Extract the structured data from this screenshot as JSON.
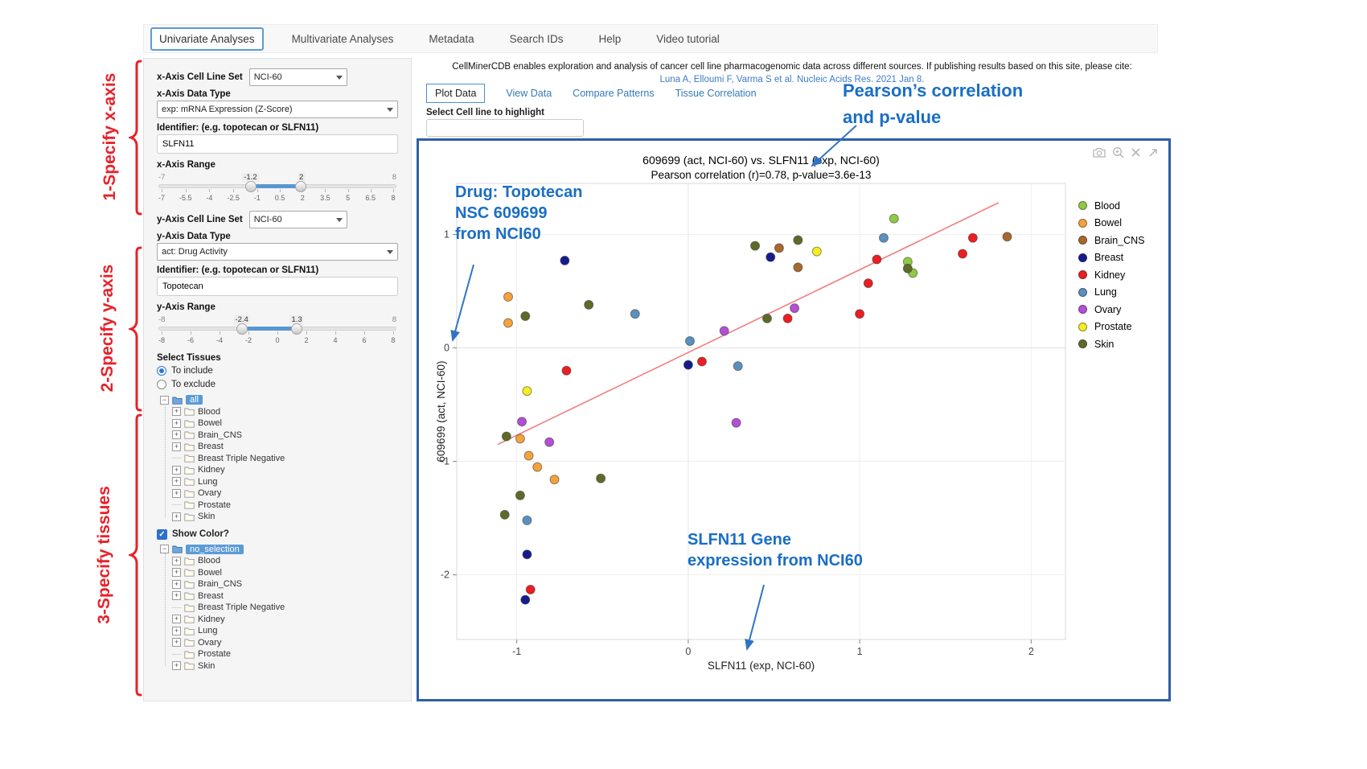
{
  "nav": {
    "tabs": [
      {
        "label": "Univariate Analyses",
        "active": true
      },
      {
        "label": "Multivariate Analyses",
        "active": false
      },
      {
        "label": "Metadata",
        "active": false
      },
      {
        "label": "Search IDs",
        "active": false
      },
      {
        "label": "Help",
        "active": false
      },
      {
        "label": "Video tutorial",
        "active": false
      }
    ]
  },
  "steps": {
    "step1": "1-Specify x-axis",
    "step2": "2-Specify y-axis",
    "step3": "3-Specify tissues"
  },
  "sidebar": {
    "x_axis": {
      "cell_line_label": "x-Axis Cell Line Set",
      "cell_line_value": "NCI-60",
      "data_type_label": "x-Axis Data Type",
      "data_type_value": "exp: mRNA Expression (Z-Score)",
      "identifier_label": "Identifier: (e.g. topotecan or SLFN11)",
      "identifier_value": "SLFN11",
      "range_label": "x-Axis Range",
      "range": {
        "min": -7,
        "max": 8,
        "from": -1.2,
        "to": 2,
        "min_label": "-7",
        "max_label": "8",
        "from_label": "-1.2",
        "to_label": "2",
        "ticks": [
          "-7",
          "-5.5",
          "-4",
          "-2.5",
          "-1",
          "0.5",
          "2",
          "3.5",
          "5",
          "6.5",
          "8"
        ]
      }
    },
    "y_axis": {
      "cell_line_label": "y-Axis Cell Line Set",
      "cell_line_value": "NCI-60",
      "data_type_label": "y-Axis Data Type",
      "data_type_value": "act: Drug Activity",
      "identifier_label": "Identifier: (e.g. topotecan or SLFN11)",
      "identifier_value": "Topotecan",
      "range_label": "y-Axis Range",
      "range": {
        "min": -8,
        "max": 8,
        "from": -2.4,
        "to": 1.3,
        "min_label": "-8",
        "max_label": "8",
        "from_label": "-2.4",
        "to_label": "1.3",
        "ticks": [
          "-8",
          "-6",
          "-4",
          "-2",
          "0",
          "2",
          "4",
          "6",
          "8"
        ]
      }
    },
    "tissues": {
      "label": "Select Tissues",
      "radio_include": "To include",
      "radio_exclude": "To exclude",
      "include_selected": true,
      "tree_root": "all",
      "exclude_tree_root": "no_selection",
      "items": [
        "Blood",
        "Bowel",
        "Brain_CNS",
        "Breast",
        "Breast Triple Negative",
        "Kidney",
        "Lung",
        "Ovary",
        "Prostate",
        "Skin"
      ],
      "leaf_items": [
        "Breast Triple Negative",
        "Prostate"
      ],
      "show_color_label": "Show Color?",
      "show_color_checked": true
    }
  },
  "main": {
    "citation_text": "CellMinerCDB enables exploration and analysis of cancer cell line pharmacogenomic data across different sources. If publishing results based on this site, please cite:",
    "citation_link": "Luna A, Elloumi F, Varma S et al. Nucleic Acids Res. 2021 Jan 8.",
    "tabs": [
      {
        "label": "Plot Data",
        "active": true
      },
      {
        "label": "View Data",
        "active": false
      },
      {
        "label": "Compare Patterns",
        "active": false
      },
      {
        "label": "Tissue Correlation",
        "active": false
      }
    ],
    "highlight_label": "Select Cell line to highlight",
    "highlight_value": "",
    "modebar_icons": [
      "camera-icon",
      "zoom-in-icon",
      "close-icon",
      "pan-arrow-icon"
    ]
  },
  "callouts": {
    "color": "#1a6ec5",
    "pearson_line1": "Pearson’s correlation",
    "pearson_line2": "and p-value",
    "drug_line1": "Drug: Topotecan",
    "drug_line2": "NSC 609699",
    "drug_line3": "from NCI60",
    "gene_line1": "SLFN11 Gene",
    "gene_line2": "expression from NCI60"
  },
  "chart_data": {
    "type": "scatter",
    "title": "609699 (act, NCI-60) vs. SLFN11 (exp, NCI-60)",
    "subtitle": "Pearson correlation (r)=0.78, p-value=3.6e-13",
    "xlabel": "SLFN11 (exp, NCI-60)",
    "ylabel": "609699 (act, NCI-60)",
    "xlim": [
      -1.35,
      2.2
    ],
    "ylim": [
      -2.57,
      1.45
    ],
    "xticks": [
      -1,
      0,
      1,
      2
    ],
    "yticks": [
      -2,
      -1,
      0,
      1
    ],
    "grid": true,
    "legend_position": "right",
    "regression_line": {
      "x1": -1.11,
      "y1": -0.85,
      "x2": 1.81,
      "y2": 1.28,
      "color": "#f07f7f"
    },
    "series": [
      {
        "name": "Blood",
        "color": "#90c944",
        "points": [
          [
            1.2,
            1.14
          ],
          [
            1.28,
            0.76
          ],
          [
            1.31,
            0.66
          ]
        ]
      },
      {
        "name": "Bowel",
        "color": "#f5a13c",
        "points": [
          [
            -1.05,
            0.45
          ],
          [
            -1.05,
            0.22
          ],
          [
            -0.98,
            -0.8
          ],
          [
            -0.93,
            -0.95
          ],
          [
            -0.88,
            -1.05
          ],
          [
            -0.78,
            -1.16
          ]
        ]
      },
      {
        "name": "Brain_CNS",
        "color": "#a9682c",
        "points": [
          [
            0.53,
            0.88
          ],
          [
            0.64,
            0.71
          ],
          [
            1.86,
            0.98
          ]
        ]
      },
      {
        "name": "Breast",
        "color": "#151b8d",
        "points": [
          [
            -0.72,
            0.77
          ],
          [
            0.48,
            0.8
          ],
          [
            0.0,
            -0.15
          ],
          [
            -0.94,
            -1.82
          ],
          [
            -0.95,
            -2.22
          ]
        ]
      },
      {
        "name": "Kidney",
        "color": "#ea1e23",
        "points": [
          [
            1.66,
            0.97
          ],
          [
            1.6,
            0.83
          ],
          [
            1.1,
            0.78
          ],
          [
            1.05,
            0.57
          ],
          [
            1.0,
            0.3
          ],
          [
            0.58,
            0.26
          ],
          [
            0.08,
            -0.12
          ],
          [
            -0.71,
            -0.2
          ],
          [
            -0.92,
            -2.13
          ]
        ]
      },
      {
        "name": "Lung",
        "color": "#5b8fbf",
        "points": [
          [
            1.14,
            0.97
          ],
          [
            -0.31,
            0.3
          ],
          [
            0.01,
            0.06
          ],
          [
            0.29,
            -0.16
          ],
          [
            -0.94,
            -1.52
          ]
        ]
      },
      {
        "name": "Ovary",
        "color": "#b34fd6",
        "points": [
          [
            0.62,
            0.35
          ],
          [
            0.21,
            0.15
          ],
          [
            0.28,
            -0.66
          ],
          [
            -0.97,
            -0.65
          ],
          [
            -0.81,
            -0.83
          ]
        ]
      },
      {
        "name": "Prostate",
        "color": "#f4ee1f",
        "points": [
          [
            0.75,
            0.85
          ],
          [
            -0.94,
            -0.38
          ]
        ]
      },
      {
        "name": "Skin",
        "color": "#5d6b28",
        "points": [
          [
            0.39,
            0.9
          ],
          [
            0.64,
            0.95
          ],
          [
            1.28,
            0.7
          ],
          [
            -0.58,
            0.38
          ],
          [
            0.46,
            0.26
          ],
          [
            -0.95,
            0.28
          ],
          [
            -1.06,
            -0.78
          ],
          [
            -0.51,
            -1.15
          ],
          [
            -0.98,
            -1.3
          ],
          [
            -1.07,
            -1.47
          ]
        ]
      }
    ]
  }
}
